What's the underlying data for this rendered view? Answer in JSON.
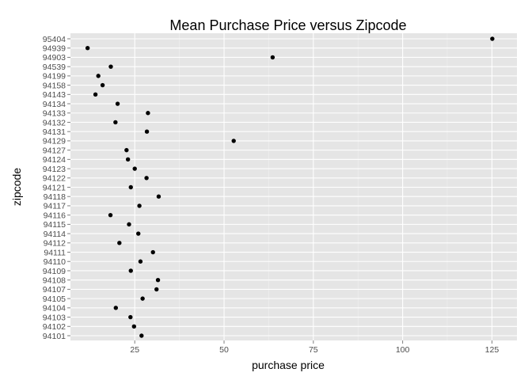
{
  "colors": {
    "panel_background": "#E5E5E5",
    "grid_major": "#FFFFFF",
    "point": "#000000",
    "tick_text": "#4D4D4D"
  },
  "chart_data": {
    "type": "scatter",
    "title": "Mean Purchase Price versus Zipcode",
    "xlabel": "purchase price",
    "ylabel": "zipcode",
    "xlim": [
      7,
      132
    ],
    "x_ticks": [
      25,
      50,
      75,
      100,
      125
    ],
    "grid": true,
    "legend": "none",
    "categories": [
      "94101",
      "94102",
      "94103",
      "94104",
      "94105",
      "94107",
      "94108",
      "94109",
      "94110",
      "94111",
      "94112",
      "94114",
      "94115",
      "94116",
      "94117",
      "94118",
      "94121",
      "94122",
      "94123",
      "94124",
      "94127",
      "94129",
      "94131",
      "94132",
      "94133",
      "94134",
      "94143",
      "94158",
      "94199",
      "94539",
      "94903",
      "94939",
      "95404"
    ],
    "values": [
      26.9,
      24.8,
      23.8,
      19.7,
      27.2,
      31.1,
      31.5,
      23.9,
      26.6,
      30.1,
      20.7,
      26.0,
      23.4,
      18.2,
      26.3,
      31.7,
      23.9,
      28.3,
      25.0,
      23.1,
      22.7,
      52.7,
      28.4,
      19.6,
      28.7,
      20.2,
      14.0,
      16.0,
      14.8,
      18.3,
      63.6,
      11.8,
      125.1
    ]
  }
}
